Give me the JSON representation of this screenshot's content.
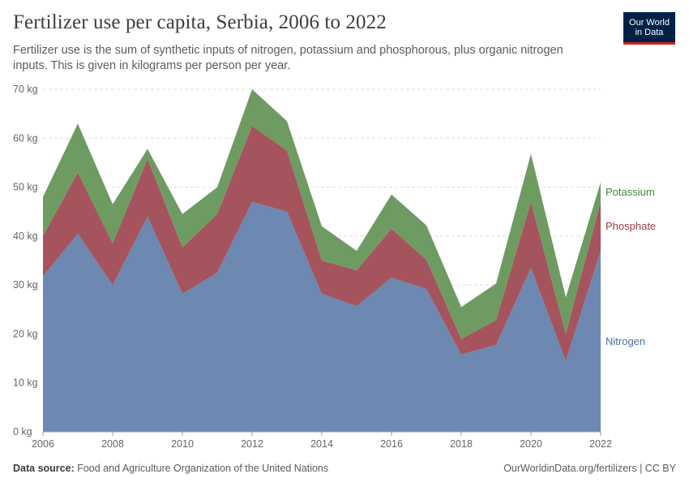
{
  "header": {
    "title": "Fertilizer use per capita, Serbia, 2006 to 2022",
    "subtitle": "Fertilizer use is the sum of synthetic inputs of nitrogen, potassium and phosphorous, plus organic nitrogen inputs. This is given in kilograms per person per year.",
    "logo_line1": "Our World",
    "logo_line2": "in Data"
  },
  "footer": {
    "source_label": "Data source:",
    "source_text": "Food and Agriculture Organization of the United Nations",
    "credit": "OurWorldinData.org/fertilizers | CC BY"
  },
  "colors": {
    "nitrogen": "#6d88b1",
    "phosphate": "#a5545e",
    "potassium": "#6e9b62",
    "nitrogen_label": "#4a6fa5",
    "phosphate_label": "#9a3a44",
    "potassium_label": "#3f8a3a"
  },
  "chart_data": {
    "type": "area",
    "stacked": true,
    "x": [
      2006,
      2007,
      2008,
      2009,
      2010,
      2011,
      2012,
      2013,
      2014,
      2015,
      2016,
      2017,
      2018,
      2019,
      2020,
      2021,
      2022
    ],
    "series": [
      {
        "name": "Nitrogen",
        "values": [
          31.8,
          40.5,
          30.0,
          44.0,
          28.2,
          32.5,
          47.0,
          45.0,
          28.2,
          25.7,
          31.5,
          29.2,
          15.8,
          17.8,
          33.5,
          14.5,
          37.0
        ]
      },
      {
        "name": "Phosphate",
        "values": [
          8.2,
          12.5,
          8.5,
          11.8,
          9.5,
          12.0,
          15.5,
          12.5,
          6.8,
          7.3,
          10.0,
          6.0,
          3.2,
          5.0,
          13.5,
          5.5,
          10.0
        ]
      },
      {
        "name": "Potassium",
        "values": [
          8.0,
          10.0,
          8.0,
          2.0,
          6.8,
          5.5,
          7.5,
          6.0,
          7.0,
          4.0,
          7.0,
          7.0,
          6.5,
          7.5,
          9.8,
          7.5,
          4.0
        ]
      }
    ],
    "ylim": [
      0,
      70
    ],
    "yticks": [
      0,
      10,
      20,
      30,
      40,
      50,
      60,
      70
    ],
    "ytick_labels": [
      "0 kg",
      "10 kg",
      "20 kg",
      "30 kg",
      "40 kg",
      "50 kg",
      "60 kg",
      "70 kg"
    ],
    "xticks": [
      2006,
      2008,
      2010,
      2012,
      2014,
      2016,
      2018,
      2020,
      2022
    ],
    "xtick_labels": [
      "2006",
      "2008",
      "2010",
      "2012",
      "2014",
      "2016",
      "2018",
      "2020",
      "2022"
    ],
    "grid": true,
    "legend": "inline-right"
  }
}
